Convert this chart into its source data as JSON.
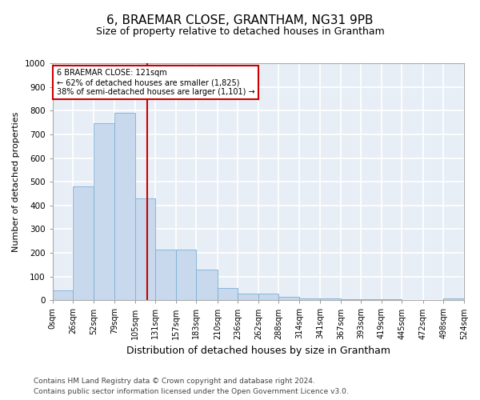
{
  "title": "6, BRAEMAR CLOSE, GRANTHAM, NG31 9PB",
  "subtitle": "Size of property relative to detached houses in Grantham",
  "xlabel": "Distribution of detached houses by size in Grantham",
  "ylabel": "Number of detached properties",
  "bar_color": "#c8d9ed",
  "bar_edge_color": "#7bafd4",
  "background_color": "#e8eef6",
  "grid_color": "#ffffff",
  "red_line_x": 121,
  "annotation_line1": "6 BRAEMAR CLOSE: 121sqm",
  "annotation_line2": "← 62% of detached houses are smaller (1,825)",
  "annotation_line3": "38% of semi-detached houses are larger (1,101) →",
  "annotation_box_color": "#ffffff",
  "annotation_box_edge_color": "#cc0000",
  "bin_edges": [
    0,
    26,
    52,
    79,
    105,
    131,
    157,
    183,
    210,
    236,
    262,
    288,
    314,
    341,
    367,
    393,
    419,
    445,
    472,
    498,
    524
  ],
  "bar_heights": [
    42,
    480,
    748,
    790,
    430,
    215,
    215,
    130,
    50,
    27,
    27,
    13,
    8,
    8,
    5,
    5,
    5,
    0,
    0,
    8
  ],
  "ylim": [
    0,
    1000
  ],
  "yticks": [
    0,
    100,
    200,
    300,
    400,
    500,
    600,
    700,
    800,
    900,
    1000
  ],
  "footer1": "Contains HM Land Registry data © Crown copyright and database right 2024.",
  "footer2": "Contains public sector information licensed under the Open Government Licence v3.0.",
  "title_fontsize": 11,
  "subtitle_fontsize": 9,
  "ylabel_fontsize": 8,
  "xlabel_fontsize": 9,
  "tick_fontsize": 7,
  "footer_fontsize": 6.5
}
